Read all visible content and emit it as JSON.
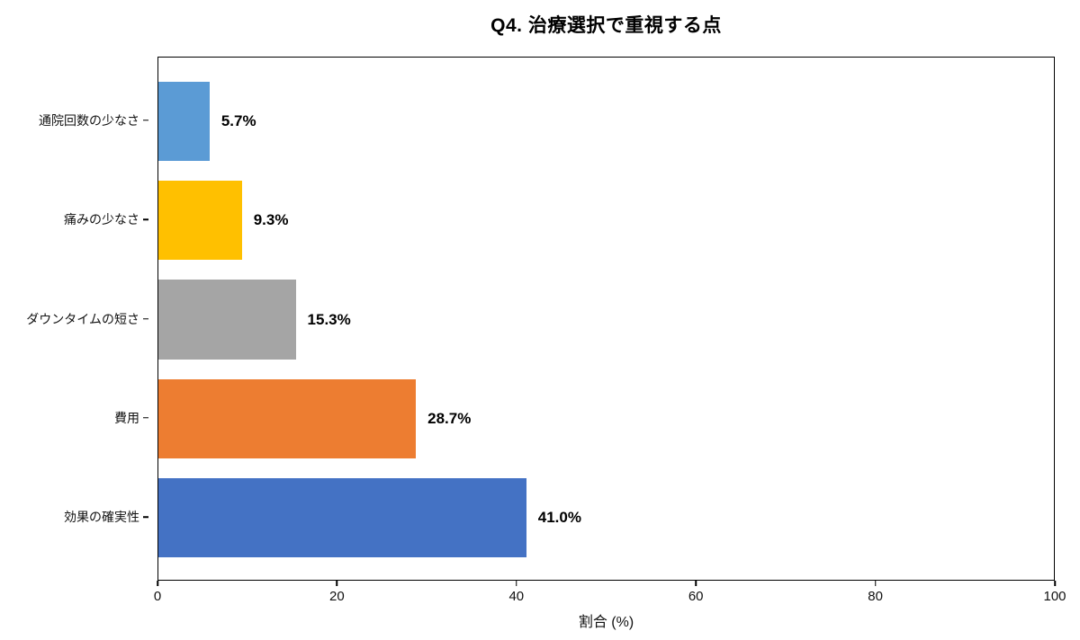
{
  "chart_data": {
    "type": "bar",
    "orientation": "horizontal",
    "title": "Q4. 治療選択で重視する点",
    "xlabel": "割合 (%)",
    "ylabel": "",
    "xlim": [
      0,
      100
    ],
    "xticks": [
      "0",
      "20",
      "40",
      "60",
      "80",
      "100"
    ],
    "xtick_values": [
      0,
      20,
      40,
      60,
      80,
      100
    ],
    "categories_top_to_bottom": [
      "通院回数の少なさ",
      "痛みの少なさ",
      "ダウンタイムの短さ",
      "費用",
      "効果の確実性"
    ],
    "values": [
      5.7,
      9.3,
      15.3,
      28.7,
      41.0
    ],
    "value_labels": [
      "5.7%",
      "9.3%",
      "15.3%",
      "28.7%",
      "41.0%"
    ],
    "bar_colors": [
      "#5B9BD5",
      "#FFC000",
      "#A5A5A5",
      "#ED7D31",
      "#4472C4"
    ],
    "grid": false,
    "legend": null,
    "frame_color": "#000000",
    "background_color": "#FFFFFF"
  }
}
